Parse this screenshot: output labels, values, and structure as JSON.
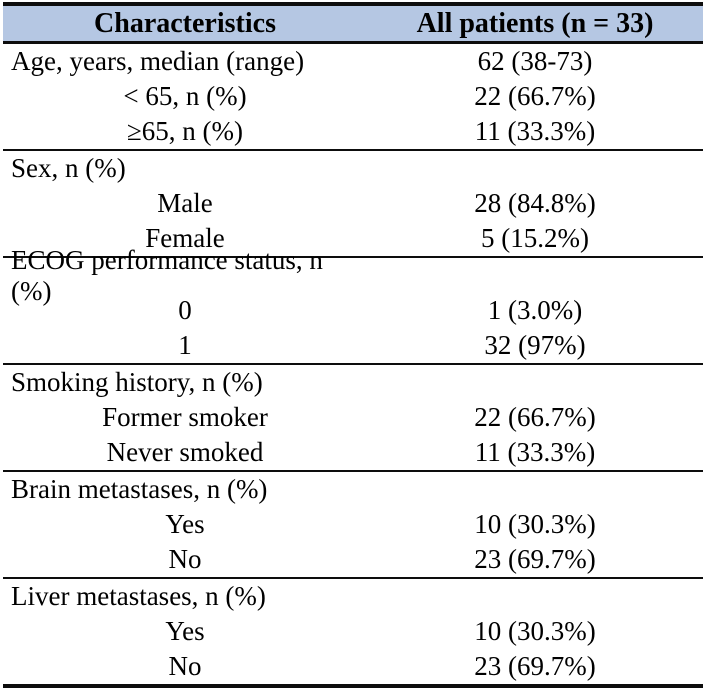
{
  "table": {
    "title_row": {
      "characteristics": "Characteristics",
      "all_patients": "All patients (n = 33)"
    },
    "colors": {
      "header_bg": "#b5c7e3",
      "rule": "#0d0d0d",
      "text": "#000000"
    },
    "sections": [
      {
        "rows": [
          {
            "label": "Age, years, median (range)",
            "value": "62 (38-73)"
          },
          {
            "label": "< 65, n (%)",
            "value": "22 (66.7%)"
          },
          {
            "label": "≥65, n (%)",
            "value": "11 (33.3%)"
          }
        ]
      },
      {
        "rows": [
          {
            "label": "Sex, n (%)",
            "value": ""
          },
          {
            "label": "Male",
            "value": "28 (84.8%)"
          },
          {
            "label": "Female",
            "value": "5 (15.2%)"
          }
        ]
      },
      {
        "rows": [
          {
            "label": "ECOG performance status, n (%)",
            "value": ""
          },
          {
            "label": "0",
            "value": "1 (3.0%)"
          },
          {
            "label": "1",
            "value": "32 (97%)"
          }
        ]
      },
      {
        "rows": [
          {
            "label": "Smoking history, n (%)",
            "value": ""
          },
          {
            "label": "Former smoker",
            "value": "22 (66.7%)"
          },
          {
            "label": "Never smoked",
            "value": "11 (33.3%)"
          }
        ]
      },
      {
        "rows": [
          {
            "label": "Brain metastases, n (%)",
            "value": ""
          },
          {
            "label": "Yes",
            "value": "10 (30.3%)"
          },
          {
            "label": "No",
            "value": "23 (69.7%)"
          }
        ]
      },
      {
        "rows": [
          {
            "label": "Liver metastases, n (%)",
            "value": ""
          },
          {
            "label": "Yes",
            "value": "10 (30.3%)"
          },
          {
            "label": "No",
            "value": "23 (69.7%)"
          }
        ]
      }
    ]
  }
}
